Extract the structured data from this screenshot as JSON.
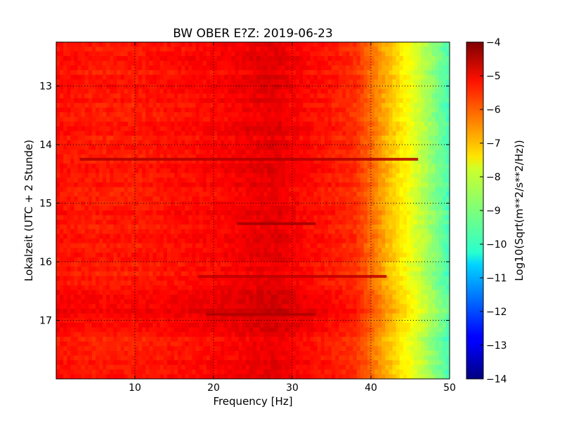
{
  "chart_data": {
    "type": "heatmap",
    "title": "BW OBER E?Z: 2019-06-23",
    "xlabel": "Frequency [Hz]",
    "ylabel": "Lokalzeit (UTC + 2 Stunde)",
    "xlim": [
      0,
      50
    ],
    "ylim": [
      12.25,
      18.0
    ],
    "y_inverted": true,
    "xticks": [
      10,
      20,
      30,
      40,
      50
    ],
    "yticks": [
      13,
      14,
      15,
      16,
      17
    ],
    "grid": true,
    "colormap": "jet",
    "colorbar": {
      "label": "Log10(Sqrt(m**2/s**2/Hz))",
      "range": [
        -14,
        -4
      ],
      "ticks": [
        -4,
        -5,
        -6,
        -7,
        -8,
        -9,
        -10,
        -11,
        -12,
        -13,
        -14
      ]
    },
    "spectrum_profile": {
      "frequency_hz": [
        0,
        5,
        10,
        15,
        20,
        25,
        28,
        30,
        35,
        38,
        40,
        42,
        44,
        46,
        48,
        50
      ],
      "log10_amplitude": [
        -5.4,
        -5.5,
        -5.5,
        -5.4,
        -5.3,
        -5.1,
        -5.0,
        -5.2,
        -5.5,
        -5.7,
        -6.3,
        -7.0,
        -7.6,
        -8.2,
        -8.9,
        -9.6
      ]
    },
    "strong_bands": [
      {
        "time": 14.25,
        "f_from": 3,
        "f_to": 46,
        "strength": 0.35
      },
      {
        "time": 15.35,
        "f_from": 23,
        "f_to": 33,
        "strength": 0.35
      },
      {
        "time": 16.25,
        "f_from": 18,
        "f_to": 42,
        "strength": 0.3
      },
      {
        "time": 16.9,
        "f_from": 19,
        "f_to": 33,
        "strength": 0.3
      }
    ],
    "elevated_period": {
      "from": 16.45,
      "to": 17.2,
      "extra": 0.25
    }
  }
}
